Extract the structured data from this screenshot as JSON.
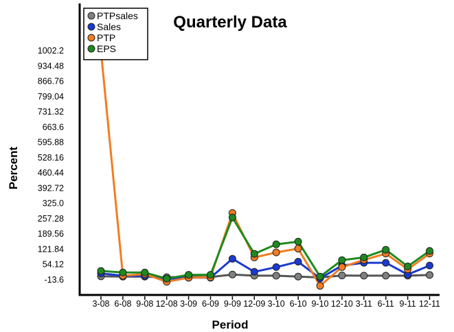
{
  "chart_data": {
    "type": "line",
    "title": "Quarterly Data",
    "xlabel": "Period",
    "ylabel": "Percent",
    "categories": [
      "3-08",
      "6-08",
      "9-08",
      "12-08",
      "3-09",
      "6-09",
      "9-09",
      "12-09",
      "3-10",
      "6-10",
      "9-10",
      "12-10",
      "3-11",
      "6-11",
      "9-11",
      "12-11"
    ],
    "yticks": [
      "1002.2",
      "934.48",
      "866.76",
      "799.04",
      "731.32",
      "663.6",
      "595.88",
      "528.16",
      "460.44",
      "392.72",
      "325.0",
      "257.28",
      "189.56",
      "121.84",
      "54.12",
      "-13.6"
    ],
    "ylim": [
      -35,
      1002.2
    ],
    "grid": false,
    "legend_position": "top-left",
    "series": [
      {
        "name": "PTPsales",
        "color": "#555555",
        "marker": "#808080",
        "values": [
          2,
          1,
          1,
          -2,
          0,
          -1,
          10,
          5,
          5,
          1,
          -3,
          6,
          5,
          5,
          5,
          8
        ]
      },
      {
        "name": "Sales",
        "color": "#1a3ad1",
        "marker": "#1a3ad1",
        "values": [
          15,
          5,
          4,
          -10,
          -4,
          -4,
          80,
          22,
          43,
          67,
          -7,
          50,
          62,
          62,
          10,
          50
        ]
      },
      {
        "name": "PTP",
        "color": "#f07d22",
        "marker": "#f07d22",
        "values": [
          1000,
          5,
          12,
          -22,
          -4,
          -2,
          283,
          86,
          108,
          125,
          -40,
          43,
          75,
          103,
          33,
          103
        ]
      },
      {
        "name": "EPS",
        "color": "#1e8a1e",
        "marker": "#1e8a1e",
        "values": [
          26,
          19,
          19,
          -8,
          9,
          9,
          263,
          102,
          144,
          156,
          1,
          74,
          86,
          120,
          46,
          115
        ]
      }
    ]
  }
}
